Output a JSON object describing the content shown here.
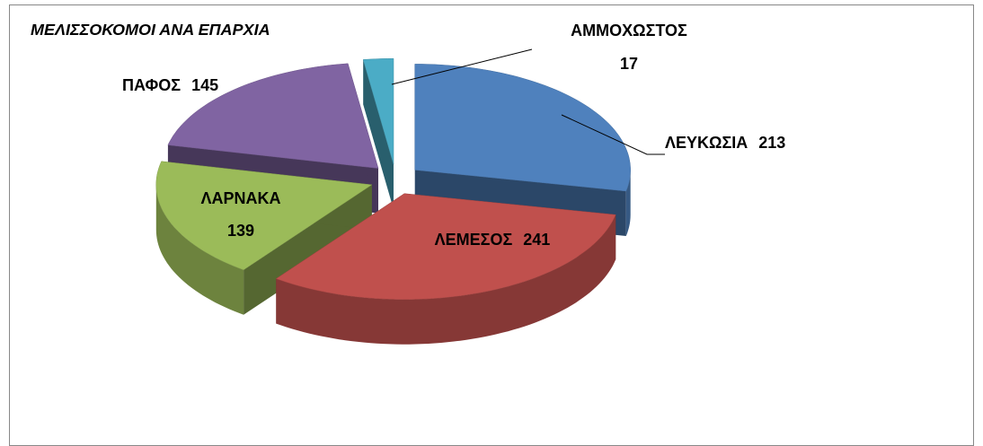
{
  "chart_data": {
    "type": "pie",
    "title": "ΜΕΛΙΣΣΟΚΟΜΟΙ ΑΝΑ ΕΠΑΡΧΙΑ",
    "categories": [
      "ΛΕΥΚΩΣΙΑ",
      "ΛΕΜΕΣΟΣ",
      "ΛΑΡΝΑΚΑ",
      "ΠΑΦΟΣ",
      "ΑΜΜΟΧΩΣΤΟΣ"
    ],
    "values": [
      213,
      241,
      139,
      145,
      17
    ],
    "colors": [
      "#4f81bd",
      "#c0504d",
      "#9bbb59",
      "#8064a2",
      "#4bacc6"
    ]
  }
}
